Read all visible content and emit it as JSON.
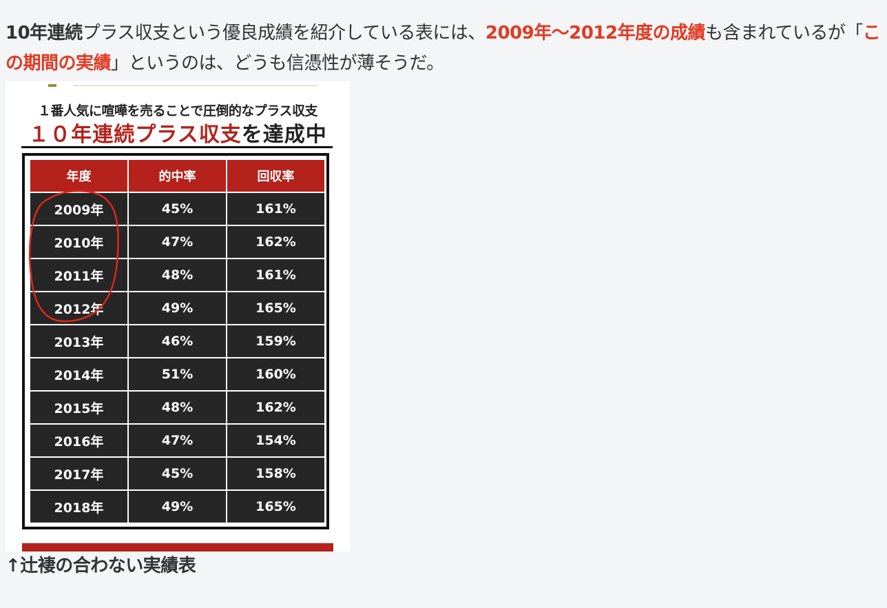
{
  "paragraph": {
    "p1": "10年連続",
    "p2": "プラス収支という優良成績を紹介している表には、",
    "p3": "2009年〜2012年度の成績",
    "p4": "も含まれているが「",
    "p5": "この期間の実績",
    "p6": "」というのは、どうも信憑性が薄そうだ。"
  },
  "image": {
    "subtitle": "１番人気に喧嘩を売ることで圧倒的なプラス収支",
    "title_red": "１０年連続プラス収支",
    "title_black": "を達成中",
    "headers": [
      "年度",
      "的中率",
      "回収率"
    ],
    "rows": [
      [
        "2009年",
        "45%",
        "161%"
      ],
      [
        "2010年",
        "47%",
        "162%"
      ],
      [
        "2011年",
        "48%",
        "161%"
      ],
      [
        "2012年",
        "49%",
        "165%"
      ],
      [
        "2013年",
        "46%",
        "159%"
      ],
      [
        "2014年",
        "51%",
        "160%"
      ],
      [
        "2015年",
        "48%",
        "162%"
      ],
      [
        "2016年",
        "47%",
        "154%"
      ],
      [
        "2017年",
        "45%",
        "158%"
      ],
      [
        "2018年",
        "49%",
        "165%"
      ]
    ],
    "accent_color": "#b5211b"
  },
  "caption": "↑辻褄の合わない実績表"
}
